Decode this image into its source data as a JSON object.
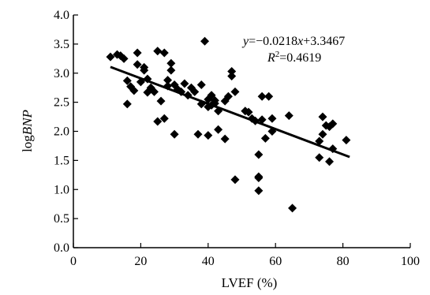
{
  "chart_data": {
    "type": "scatter",
    "title": "",
    "xlabel": "LVEF (%)",
    "ylabel_prefix": "log",
    "ylabel_italic": "BNP",
    "xlim": [
      0,
      100
    ],
    "ylim": [
      0.0,
      4.0
    ],
    "xticks": [
      0,
      20,
      40,
      60,
      80,
      100
    ],
    "yticks": [
      0.0,
      0.5,
      1.0,
      1.5,
      2.0,
      2.5,
      3.0,
      3.5,
      4.0
    ],
    "xtick_labels": [
      "0",
      "20",
      "40",
      "60",
      "80",
      "100"
    ],
    "ytick_labels": [
      "0.0",
      "0.5",
      "1.0",
      "1.5",
      "2.0",
      "2.5",
      "3.0",
      "3.5",
      "4.0"
    ],
    "grid": false,
    "marker": "diamond",
    "marker_color": "#000000",
    "line_color": "#000000",
    "points": [
      [
        11,
        3.28
      ],
      [
        13,
        3.32
      ],
      [
        14,
        3.3
      ],
      [
        15,
        3.25
      ],
      [
        16,
        2.87
      ],
      [
        16,
        2.47
      ],
      [
        17,
        2.77
      ],
      [
        18,
        2.7
      ],
      [
        19,
        3.35
      ],
      [
        19,
        3.15
      ],
      [
        20,
        2.85
      ],
      [
        21,
        3.1
      ],
      [
        21,
        3.05
      ],
      [
        22,
        2.9
      ],
      [
        22,
        2.67
      ],
      [
        23,
        2.75
      ],
      [
        24,
        2.68
      ],
      [
        25,
        2.17
      ],
      [
        25,
        3.38
      ],
      [
        26,
        2.52
      ],
      [
        27,
        3.35
      ],
      [
        27,
        2.22
      ],
      [
        28,
        2.88
      ],
      [
        28,
        2.78
      ],
      [
        29,
        3.17
      ],
      [
        29,
        3.05
      ],
      [
        30,
        2.8
      ],
      [
        30,
        1.95
      ],
      [
        31,
        2.72
      ],
      [
        32,
        2.68
      ],
      [
        33,
        2.82
      ],
      [
        34,
        2.62
      ],
      [
        35,
        2.75
      ],
      [
        36,
        2.68
      ],
      [
        37,
        1.95
      ],
      [
        38,
        2.8
      ],
      [
        38,
        2.47
      ],
      [
        39,
        3.55
      ],
      [
        40,
        2.42
      ],
      [
        40,
        2.55
      ],
      [
        40,
        1.93
      ],
      [
        41,
        2.62
      ],
      [
        41,
        2.45
      ],
      [
        42,
        2.53
      ],
      [
        42,
        2.48
      ],
      [
        43,
        2.03
      ],
      [
        43,
        2.35
      ],
      [
        45,
        2.52
      ],
      [
        45,
        1.87
      ],
      [
        46,
        2.6
      ],
      [
        47,
        3.03
      ],
      [
        47,
        2.95
      ],
      [
        48,
        2.68
      ],
      [
        48,
        1.17
      ],
      [
        51,
        2.35
      ],
      [
        52,
        2.33
      ],
      [
        53,
        2.22
      ],
      [
        54,
        2.18
      ],
      [
        55,
        1.6
      ],
      [
        55,
        1.22
      ],
      [
        55,
        1.2
      ],
      [
        55,
        0.98
      ],
      [
        56,
        2.6
      ],
      [
        56,
        2.2
      ],
      [
        57,
        1.88
      ],
      [
        58,
        2.6
      ],
      [
        59,
        2.0
      ],
      [
        59,
        2.22
      ],
      [
        64,
        2.27
      ],
      [
        65,
        0.68
      ],
      [
        73,
        1.83
      ],
      [
        73,
        1.55
      ],
      [
        74,
        2.25
      ],
      [
        74,
        1.95
      ],
      [
        75,
        2.1
      ],
      [
        76,
        2.08
      ],
      [
        76,
        1.48
      ],
      [
        77,
        2.13
      ],
      [
        77,
        1.7
      ],
      [
        81,
        1.85
      ]
    ],
    "trendline": {
      "slope": -0.0218,
      "intercept": 3.3467,
      "x_range": [
        11,
        82
      ]
    },
    "annotation": {
      "eq_y": "y",
      "eq_mid": "=−0.0218",
      "eq_x": "x",
      "eq_tail": "+3.3467",
      "r2_label": "R",
      "r2_sup": "2",
      "r2_value": "=0.4619"
    }
  }
}
